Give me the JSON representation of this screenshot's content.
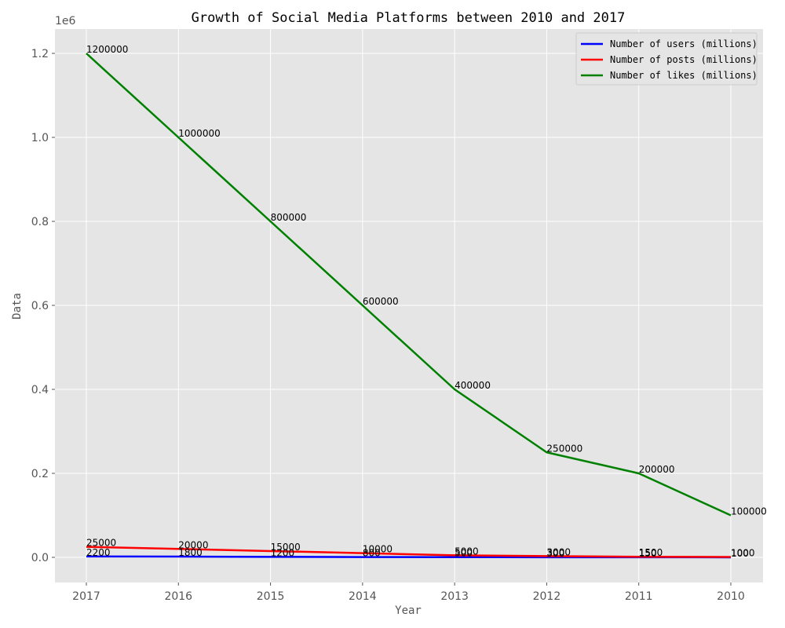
{
  "chart_data": {
    "type": "line",
    "title": "Growth of Social Media Platforms between 2010 and 2017",
    "xlabel": "Year",
    "ylabel": "Data",
    "offset_label": "1e6",
    "categories": [
      "2017",
      "2016",
      "2015",
      "2014",
      "2013",
      "2012",
      "2011",
      "2010"
    ],
    "y_ticks": [
      0.0,
      0.2,
      0.4,
      0.6,
      0.8,
      1.0,
      1.2
    ],
    "y_tick_labels": [
      "0.0",
      "0.2",
      "0.4",
      "0.6",
      "0.8",
      "1.0",
      "1.2"
    ],
    "ylim": [
      -60000,
      1260000
    ],
    "grid": true,
    "legend_position": "top-right",
    "series": [
      {
        "name": "Number of users (millions)",
        "color": "#0000ff",
        "values": [
          2200,
          1800,
          1200,
          800,
          500,
          300,
          150,
          100
        ]
      },
      {
        "name": "Number of posts (millions)",
        "color": "#ff0000",
        "values": [
          25000,
          20000,
          15000,
          10000,
          5000,
          3000,
          1500,
          1000
        ]
      },
      {
        "name": "Number of likes (millions)",
        "color": "#008000",
        "values": [
          1200000,
          1000000,
          800000,
          600000,
          400000,
          250000,
          200000,
          100000
        ]
      }
    ],
    "colors": {
      "plot_background": "#e5e5e5",
      "grid": "#ffffff",
      "text": "#555555"
    }
  }
}
